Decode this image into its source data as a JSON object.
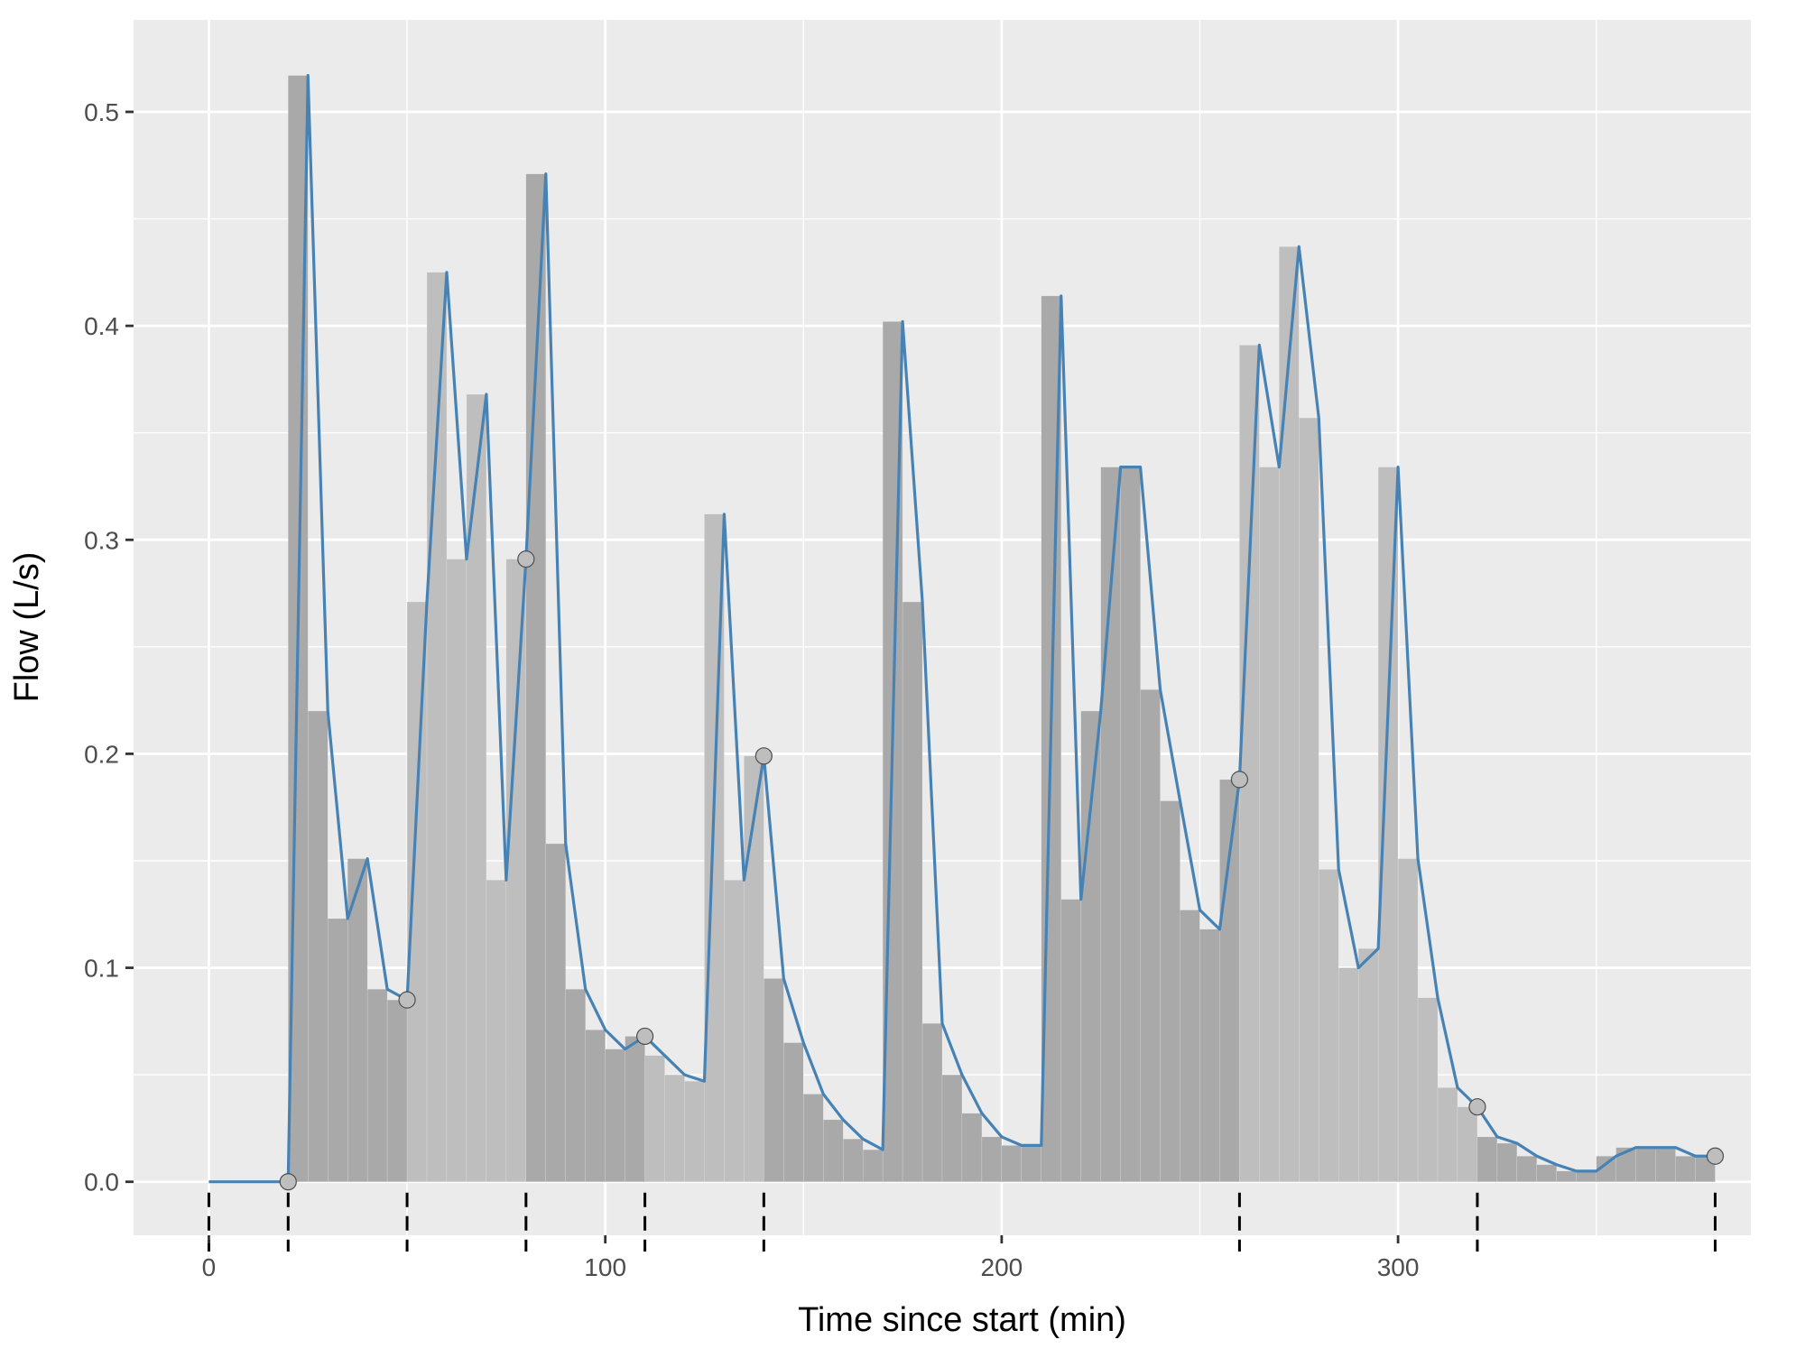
{
  "chart_data": {
    "type": "line",
    "title": "",
    "xlabel": "Time since start (min)",
    "ylabel": "Flow (L/s)",
    "xlim": [
      -19,
      389
    ],
    "ylim": [
      -0.025,
      0.543
    ],
    "x_ticks": [
      0,
      100,
      200,
      300
    ],
    "x_tick_labels": [
      "0",
      "100",
      "200",
      "300"
    ],
    "y_ticks": [
      0.0,
      0.1,
      0.2,
      0.3,
      0.4,
      0.5
    ],
    "y_tick_labels": [
      "0.0",
      "0.1",
      "0.2",
      "0.3",
      "0.4",
      "0.5"
    ],
    "grid": true,
    "legend": "none",
    "colors": {
      "panel_background": "#ebebeb",
      "grid_major": "#ffffff",
      "line": "#4682b4",
      "bar_light": "#bebebe",
      "bar_dark": "#a9a9a9",
      "marker_fill": "#bebebe",
      "marker_stroke": "#4d4d4d",
      "segment_tick": "#000000",
      "axis_text": "#4d4d4d",
      "axis_title": "#000000"
    },
    "line_series": {
      "x": [
        0,
        5,
        10,
        15,
        20,
        25,
        30,
        35,
        40,
        45,
        50,
        55,
        60,
        65,
        70,
        75,
        80,
        85,
        90,
        95,
        100,
        105,
        110,
        115,
        120,
        125,
        130,
        135,
        140,
        145,
        150,
        155,
        160,
        165,
        170,
        175,
        180,
        185,
        190,
        195,
        200,
        205,
        210,
        215,
        220,
        225,
        230,
        235,
        240,
        245,
        250,
        255,
        260,
        265,
        270,
        275,
        280,
        285,
        290,
        295,
        300,
        305,
        310,
        315,
        320,
        325,
        330,
        335,
        340,
        345,
        350,
        355,
        360,
        365,
        370,
        375,
        380
      ],
      "y": [
        0,
        0,
        0,
        0,
        0,
        0.517,
        0.22,
        0.123,
        0.151,
        0.09,
        0.085,
        0.271,
        0.425,
        0.291,
        0.368,
        0.141,
        0.291,
        0.471,
        0.158,
        0.09,
        0.071,
        0.062,
        0.068,
        0.059,
        0.05,
        0.047,
        0.312,
        0.141,
        0.199,
        0.095,
        0.065,
        0.041,
        0.029,
        0.02,
        0.015,
        0.402,
        0.271,
        0.074,
        0.05,
        0.032,
        0.021,
        0.017,
        0.017,
        0.414,
        0.132,
        0.22,
        0.334,
        0.334,
        0.23,
        0.178,
        0.127,
        0.118,
        0.188,
        0.391,
        0.334,
        0.437,
        0.357,
        0.146,
        0.1,
        0.109,
        0.334,
        0.151,
        0.086,
        0.044,
        0.035,
        0.021,
        0.018,
        0.012,
        0.008,
        0.005,
        0.005,
        0.012,
        0.016,
        0.016,
        0.016,
        0.012,
        0.012
      ]
    },
    "bars": {
      "bin_width": 5,
      "x": [
        20,
        25,
        30,
        35,
        40,
        45,
        50,
        55,
        60,
        65,
        70,
        75,
        80,
        85,
        90,
        95,
        100,
        105,
        110,
        115,
        120,
        125,
        130,
        135,
        140,
        145,
        150,
        155,
        160,
        165,
        170,
        175,
        180,
        185,
        190,
        195,
        200,
        205,
        210,
        215,
        220,
        225,
        230,
        235,
        240,
        245,
        250,
        255,
        260,
        265,
        270,
        275,
        280,
        285,
        290,
        295,
        300,
        305,
        310,
        315,
        320,
        325,
        330,
        335,
        340,
        345,
        350,
        355,
        360,
        365,
        370,
        375
      ],
      "heights": [
        0.517,
        0.22,
        0.123,
        0.151,
        0.09,
        0.085,
        0.271,
        0.425,
        0.291,
        0.368,
        0.141,
        0.291,
        0.471,
        0.158,
        0.09,
        0.071,
        0.062,
        0.068,
        0.059,
        0.05,
        0.047,
        0.312,
        0.141,
        0.199,
        0.095,
        0.065,
        0.041,
        0.029,
        0.02,
        0.015,
        0.402,
        0.271,
        0.074,
        0.05,
        0.032,
        0.021,
        0.017,
        0.017,
        0.414,
        0.132,
        0.22,
        0.334,
        0.334,
        0.23,
        0.178,
        0.127,
        0.118,
        0.188,
        0.391,
        0.334,
        0.437,
        0.357,
        0.146,
        0.1,
        0.109,
        0.334,
        0.151,
        0.086,
        0.044,
        0.035,
        0.021,
        0.018,
        0.012,
        0.008,
        0.005,
        0.005,
        0.012,
        0.016,
        0.016,
        0.016,
        0.012,
        0.012
      ],
      "shade": [
        "dark",
        "dark",
        "dark",
        "dark",
        "dark",
        "dark",
        "light",
        "light",
        "light",
        "light",
        "light",
        "light",
        "dark",
        "dark",
        "dark",
        "dark",
        "dark",
        "dark",
        "light",
        "light",
        "light",
        "light",
        "light",
        "light",
        "dark",
        "dark",
        "dark",
        "dark",
        "dark",
        "dark",
        "dark",
        "dark",
        "dark",
        "dark",
        "dark",
        "dark",
        "dark",
        "dark",
        "dark",
        "dark",
        "dark",
        "dark",
        "dark",
        "dark",
        "dark",
        "dark",
        "dark",
        "dark",
        "light",
        "light",
        "light",
        "light",
        "light",
        "light",
        "light",
        "light",
        "light",
        "light",
        "light",
        "light",
        "dark",
        "dark",
        "dark",
        "dark",
        "dark",
        "dark",
        "dark",
        "dark",
        "dark",
        "dark",
        "dark",
        "dark"
      ]
    },
    "markers": {
      "x": [
        20,
        50,
        80,
        110,
        140,
        260,
        320,
        380
      ],
      "y": [
        0,
        0.085,
        0.291,
        0.068,
        0.199,
        0.188,
        0.035,
        0.012
      ]
    },
    "segment_boundaries": [
      0,
      20,
      50,
      80,
      110,
      140,
      260,
      320,
      380
    ]
  }
}
